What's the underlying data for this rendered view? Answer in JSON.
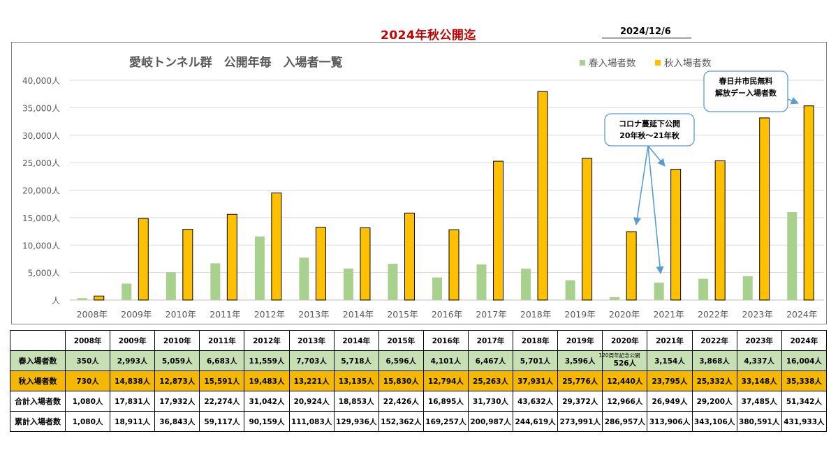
{
  "header": {
    "title": "2024年秋公開迄",
    "date": "2024/12/6"
  },
  "chart_data": {
    "type": "bar",
    "title": "愛岐トンネル群　公開年毎　入場者一覧",
    "categories": [
      "2008年",
      "2009年",
      "2010年",
      "2011年",
      "2012年",
      "2013年",
      "2014年",
      "2015年",
      "2016年",
      "2017年",
      "2018年",
      "2019年",
      "2020年",
      "2021年",
      "2022年",
      "2023年",
      "2024年"
    ],
    "series": [
      {
        "name": "春入場者数",
        "color": "#a9d18e",
        "values": [
          350,
          2993,
          5059,
          6683,
          11559,
          7703,
          5718,
          6596,
          4101,
          6467,
          5701,
          3596,
          526,
          3154,
          3868,
          4337,
          16004
        ]
      },
      {
        "name": "秋入場者数",
        "color": "#ffc000",
        "values": [
          730,
          14838,
          12873,
          15591,
          19483,
          13221,
          13135,
          15830,
          12794,
          25263,
          37931,
          25776,
          12440,
          23795,
          25332,
          33148,
          35338
        ]
      }
    ],
    "ylim": [
      0,
      40000
    ],
    "yticks": [
      "人",
      "5,000人",
      "10,000人",
      "15,000人",
      "20,000人",
      "25,000人",
      "30,000人",
      "35,000人",
      "40,000人"
    ],
    "legend_position": "top-right",
    "grid": true,
    "annotations": [
      {
        "lines": [
          "コロナ蔓延下公開",
          "20年秋～21年秋"
        ],
        "targets": [
          "2020年",
          "2021年"
        ]
      },
      {
        "lines": [
          "春日井市民無料",
          "解放デー入場者数"
        ],
        "targets": [
          "2024年"
        ]
      }
    ]
  },
  "table": {
    "years": [
      "2008年",
      "2009年",
      "2010年",
      "2011年",
      "2012年",
      "2013年",
      "2014年",
      "2015年",
      "2016年",
      "2017年",
      "2018年",
      "2019年",
      "2020年",
      "2021年",
      "2022年",
      "2023年",
      "2024年"
    ],
    "rows": [
      {
        "label": "春入場者数",
        "cells": [
          "350人",
          "2,993人",
          "5,059人",
          "6,683人",
          "11,559人",
          "7,703人",
          "5,718人",
          "6,596人",
          "4,101人",
          "6,467人",
          "5,701人",
          "3,596人",
          "526人",
          "3,154人",
          "3,868人",
          "4,337人",
          "16,004人"
        ]
      },
      {
        "label": "秋入場者数",
        "cells": [
          "730人",
          "14,838人",
          "12,873人",
          "15,591人",
          "19,483人",
          "13,221人",
          "13,135人",
          "15,830人",
          "12,794人",
          "25,263人",
          "37,931人",
          "25,776人",
          "12,440人",
          "23,795人",
          "25,332人",
          "33,148人",
          "35,338人"
        ]
      },
      {
        "label": "合計入場者数",
        "cells": [
          "1,080人",
          "17,831人",
          "17,932人",
          "22,274人",
          "31,042人",
          "20,924人",
          "18,853人",
          "22,426人",
          "16,895人",
          "31,730人",
          "43,632人",
          "29,372人",
          "12,966人",
          "26,949人",
          "29,200人",
          "37,485人",
          "51,342人"
        ]
      },
      {
        "label": "累計入場者数",
        "cells": [
          "1,080人",
          "18,911人",
          "36,843人",
          "59,117人",
          "90,159人",
          "111,083人",
          "129,936人",
          "152,362人",
          "169,257人",
          "200,987人",
          "244,619人",
          "273,991人",
          "286,957人",
          "313,906人",
          "343,106人",
          "380,591人",
          "431,933人"
        ]
      }
    ],
    "note_2020_spring": "120周年記念公開"
  }
}
